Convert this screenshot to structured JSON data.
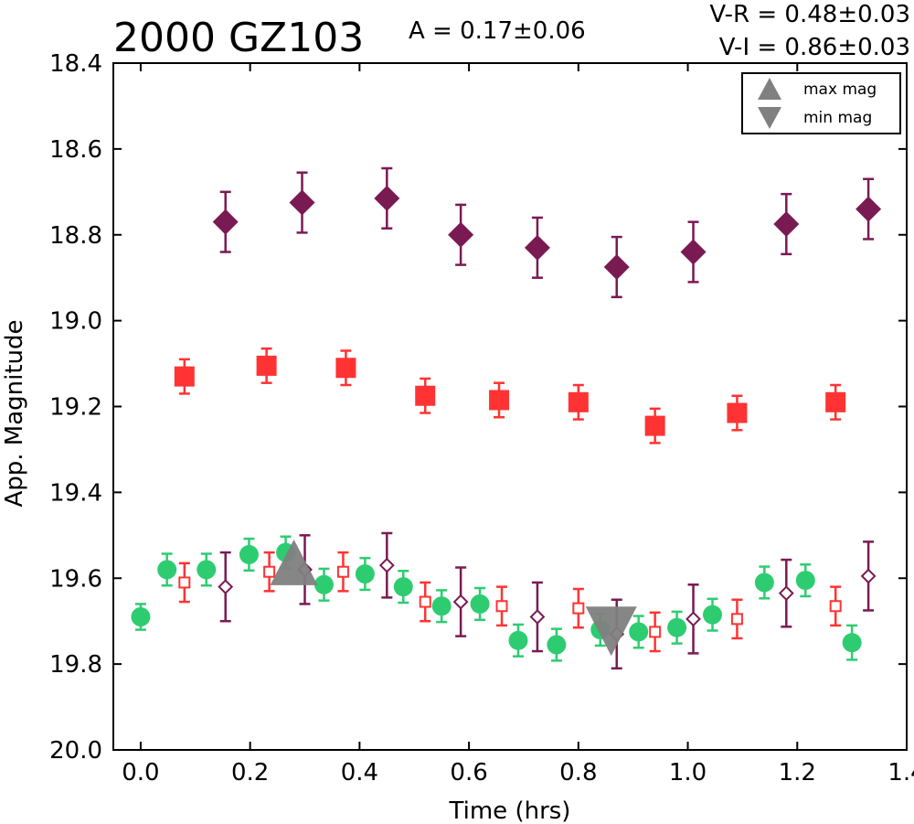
{
  "chart_data": {
    "type": "scatter",
    "title": "2000 GZ103",
    "amplitude_label": "A  = 0.17±0.06",
    "color_labels": [
      "V-R = 0.48±0.03",
      "V-I  = 0.86±0.03"
    ],
    "xlabel": "Time (hrs)",
    "ylabel": "App. Magnitude",
    "xlim": [
      -0.05,
      1.4
    ],
    "ylim": [
      18.4,
      20.0
    ],
    "y_inverted": true,
    "grid": false,
    "xticks": [
      "0.0",
      "0.2",
      "0.4",
      "0.6",
      "0.8",
      "1.0",
      "1.2",
      "1.4"
    ],
    "yticks": [
      "18.4",
      "18.6",
      "18.8",
      "19.0",
      "19.2",
      "19.4",
      "19.6",
      "19.8",
      "20.0"
    ],
    "legend": {
      "placement": "top-right",
      "entries": [
        "max mag",
        "min mag"
      ]
    },
    "colors": {
      "green": "#2ecc71",
      "red": "#ff3333",
      "purple": "#7a1a52",
      "marker_gray": "#808080"
    },
    "series": [
      {
        "marker": "diamond-filled",
        "color": "#7a1a52",
        "x": [
          0.155,
          0.295,
          0.45,
          0.585,
          0.725,
          0.87,
          1.01,
          1.18,
          1.33
        ],
        "y": [
          18.77,
          18.725,
          18.715,
          18.8,
          18.83,
          18.875,
          18.84,
          18.775,
          18.74
        ],
        "err": [
          0.07,
          0.07,
          0.07,
          0.07,
          0.07,
          0.07,
          0.07,
          0.07,
          0.07
        ]
      },
      {
        "marker": "square-filled",
        "color": "#ff3333",
        "x": [
          0.08,
          0.23,
          0.375,
          0.52,
          0.655,
          0.8,
          0.94,
          1.09,
          1.27
        ],
        "y": [
          19.13,
          19.105,
          19.11,
          19.175,
          19.185,
          19.19,
          19.245,
          19.215,
          19.19
        ],
        "err": [
          0.04,
          0.04,
          0.04,
          0.04,
          0.04,
          0.04,
          0.04,
          0.04,
          0.04
        ]
      },
      {
        "marker": "circle-filled",
        "color": "#2ecc71",
        "x": [
          0.0,
          0.048,
          0.12,
          0.198,
          0.265,
          0.335,
          0.41,
          0.48,
          0.55,
          0.62,
          0.69,
          0.76,
          0.84,
          0.91,
          0.98,
          1.045,
          1.14,
          1.215,
          1.3
        ],
        "y": [
          19.69,
          19.58,
          19.58,
          19.545,
          19.54,
          19.615,
          19.59,
          19.62,
          19.665,
          19.66,
          19.745,
          19.755,
          19.72,
          19.725,
          19.715,
          19.685,
          19.61,
          19.605,
          19.75
        ],
        "err": [
          0.03,
          0.037,
          0.037,
          0.037,
          0.037,
          0.037,
          0.037,
          0.037,
          0.037,
          0.037,
          0.037,
          0.037,
          0.037,
          0.037,
          0.037,
          0.037,
          0.037,
          0.037,
          0.04
        ]
      },
      {
        "marker": "square-open",
        "color": "#ff3333",
        "x": [
          0.08,
          0.235,
          0.37,
          0.52,
          0.66,
          0.8,
          0.94,
          1.09,
          1.27
        ],
        "y": [
          19.61,
          19.585,
          19.585,
          19.655,
          19.665,
          19.67,
          19.725,
          19.695,
          19.665
        ],
        "err": [
          0.045,
          0.045,
          0.045,
          0.045,
          0.045,
          0.045,
          0.045,
          0.045,
          0.045
        ]
      },
      {
        "marker": "diamond-open",
        "color": "#7a1a52",
        "x": [
          0.155,
          0.3,
          0.45,
          0.585,
          0.725,
          0.87,
          1.01,
          1.18,
          1.33
        ],
        "y": [
          19.62,
          19.58,
          19.57,
          19.655,
          19.69,
          19.73,
          19.695,
          19.635,
          19.595
        ],
        "err": [
          0.08,
          0.08,
          0.075,
          0.08,
          0.08,
          0.08,
          0.08,
          0.078,
          0.08
        ]
      }
    ],
    "max_mag_marker": {
      "x": 0.28,
      "y": 19.565
    },
    "min_mag_marker": {
      "x": 0.86,
      "y": 19.7
    }
  }
}
